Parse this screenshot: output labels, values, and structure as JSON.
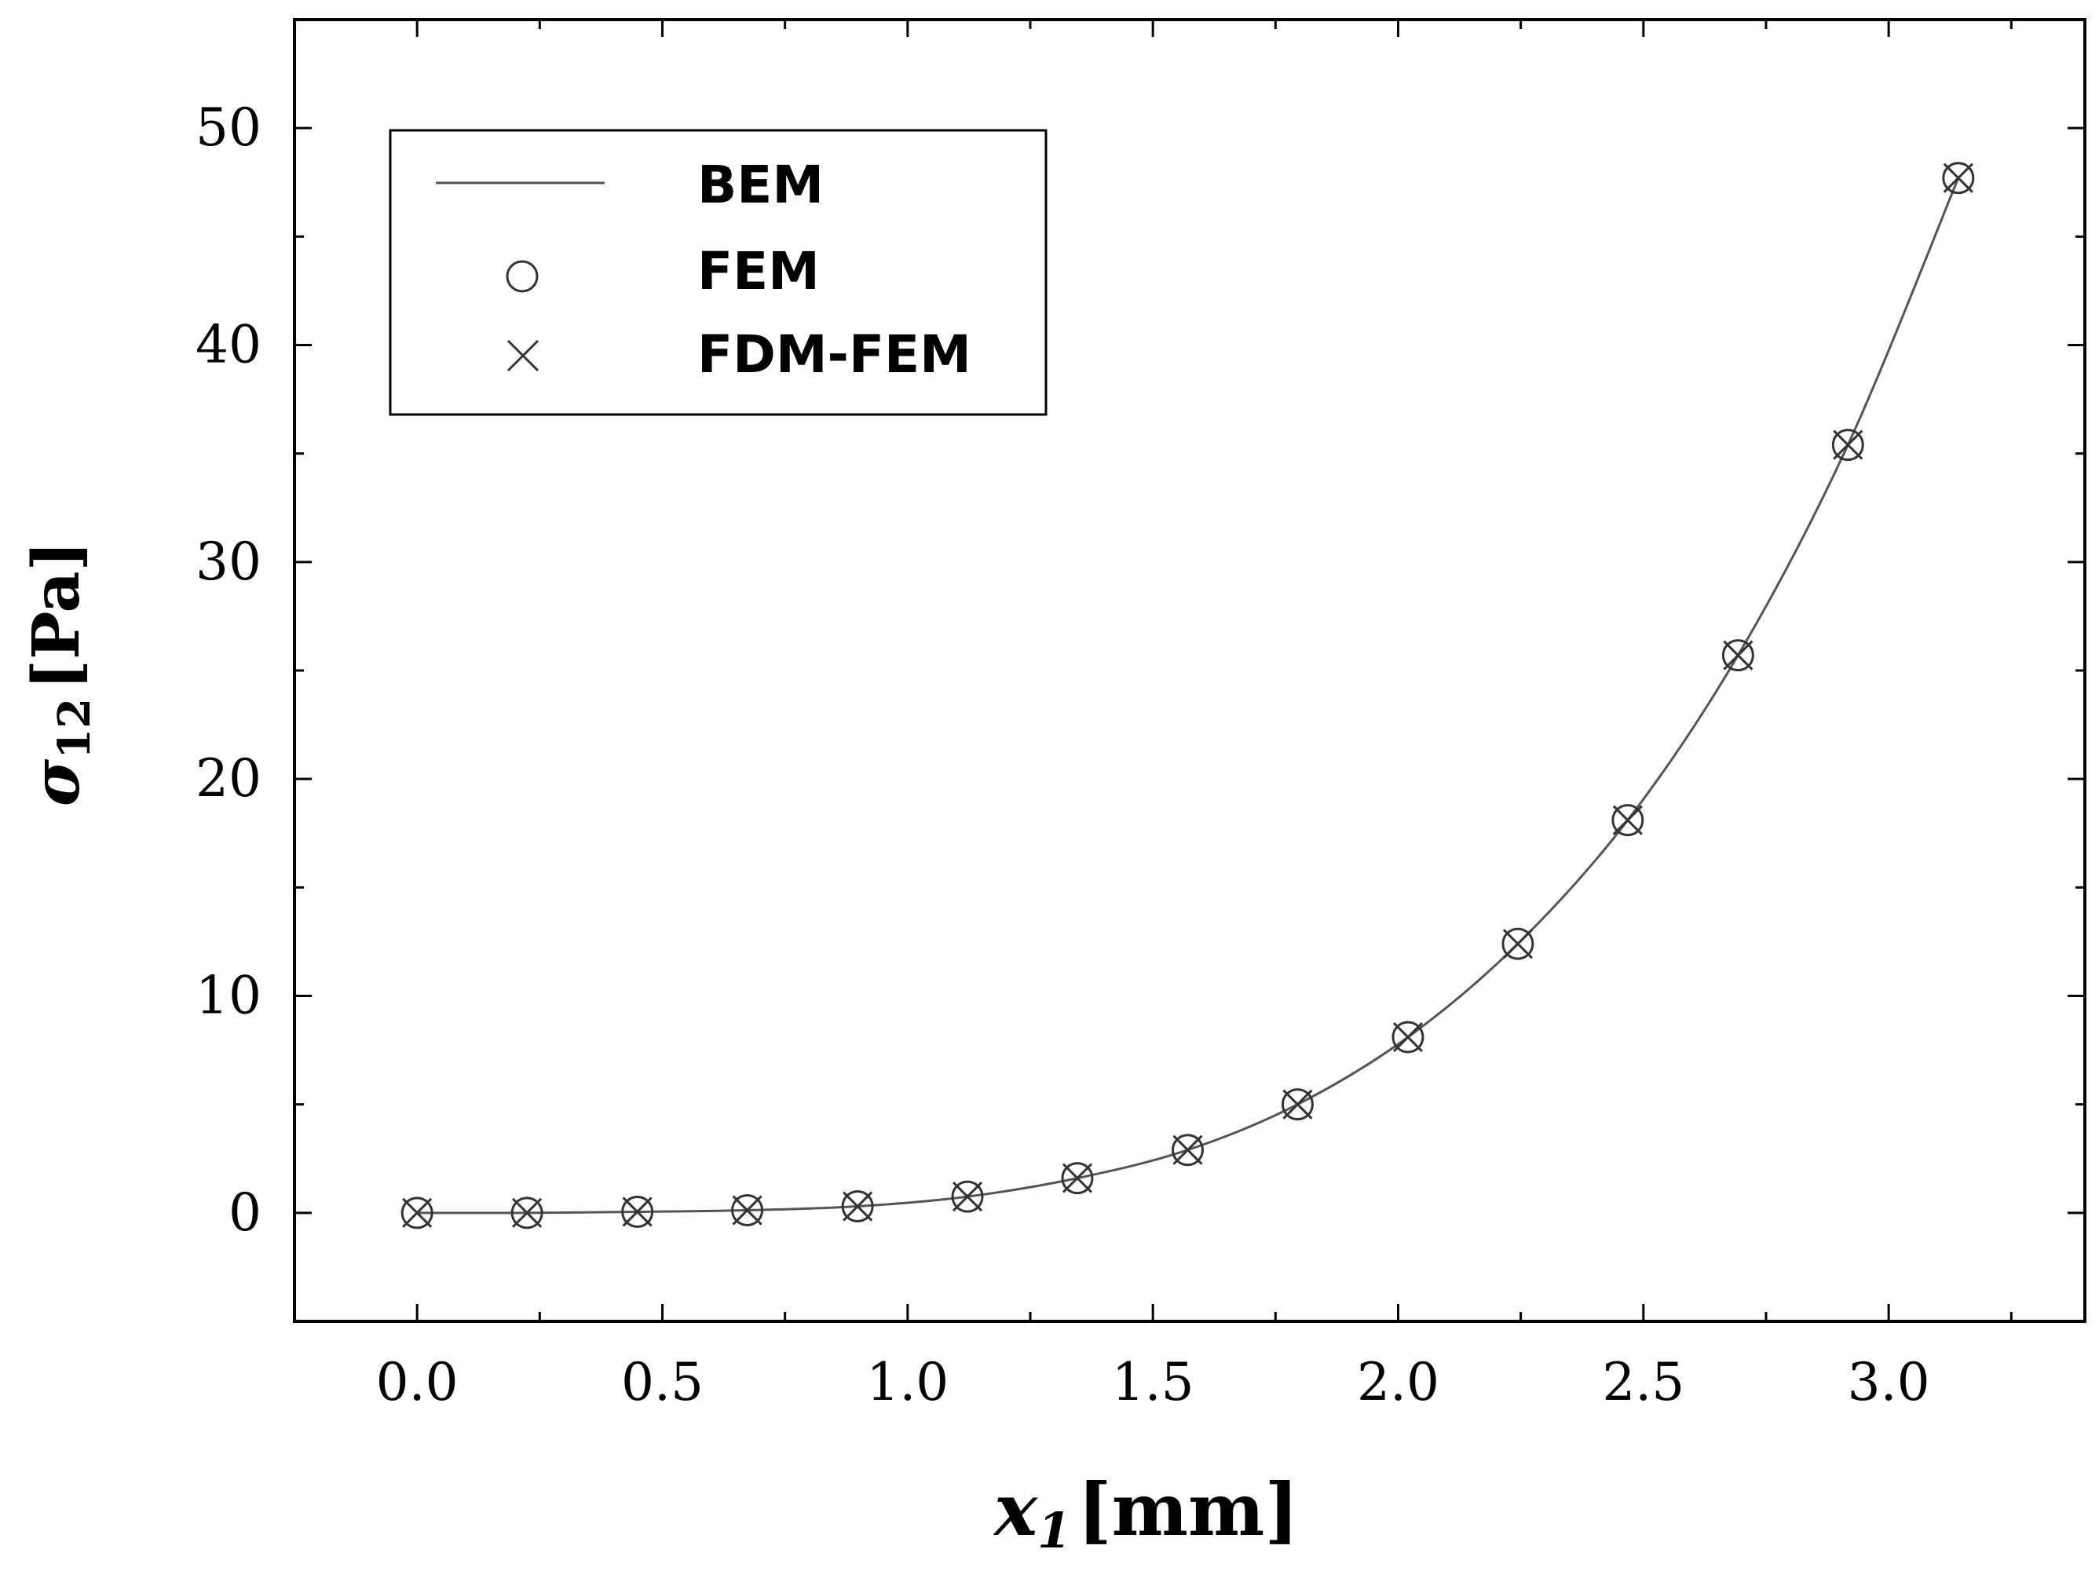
{
  "chart_data": {
    "type": "line",
    "xlabel": {
      "symbol": "x",
      "subscript": "1",
      "unit": "[mm]"
    },
    "ylabel": {
      "symbol": "σ",
      "subscript": "12",
      "unit": "[Pa]"
    },
    "xlim": [
      -0.25,
      3.4
    ],
    "ylim": [
      -5,
      55
    ],
    "xticks": [
      0.0,
      0.5,
      1.0,
      1.5,
      2.0,
      2.5,
      3.0
    ],
    "xtick_labels": [
      "0.0",
      "0.5",
      "1.0",
      "1.5",
      "2.0",
      "2.5",
      "3.0"
    ],
    "yticks": [
      0,
      10,
      20,
      30,
      40,
      50
    ],
    "ytick_labels": [
      "0",
      "10",
      "20",
      "30",
      "40",
      "50"
    ],
    "legend_position": "top-left",
    "series": [
      {
        "name": "BEM",
        "marker": "line",
        "x": [
          0.0,
          0.224,
          0.449,
          0.673,
          0.898,
          1.122,
          1.346,
          1.571,
          1.795,
          2.02,
          2.244,
          2.468,
          2.693,
          2.917,
          3.142
        ],
        "y": [
          0.0,
          0.0,
          0.05,
          0.12,
          0.3,
          0.75,
          1.6,
          2.9,
          5.0,
          8.1,
          12.4,
          18.1,
          25.7,
          35.4,
          47.7
        ]
      },
      {
        "name": "FEM",
        "marker": "circle",
        "x": [
          0.0,
          0.224,
          0.449,
          0.673,
          0.898,
          1.122,
          1.346,
          1.571,
          1.795,
          2.02,
          2.244,
          2.468,
          2.693,
          2.917,
          3.142
        ],
        "y": [
          0.0,
          0.0,
          0.05,
          0.12,
          0.3,
          0.75,
          1.6,
          2.9,
          5.0,
          8.1,
          12.4,
          18.1,
          25.7,
          35.4,
          47.7
        ]
      },
      {
        "name": "FDM-FEM",
        "marker": "x",
        "x": [
          0.0,
          0.224,
          0.449,
          0.673,
          0.898,
          1.122,
          1.346,
          1.571,
          1.795,
          2.02,
          2.244,
          2.468,
          2.693,
          2.917,
          3.142
        ],
        "y": [
          0.0,
          0.0,
          0.05,
          0.12,
          0.3,
          0.75,
          1.6,
          2.9,
          5.0,
          8.1,
          12.4,
          18.1,
          25.7,
          35.4,
          47.7
        ]
      }
    ],
    "colors": {
      "line": "#555555",
      "marker": "#333333",
      "axis": "#000000"
    }
  }
}
